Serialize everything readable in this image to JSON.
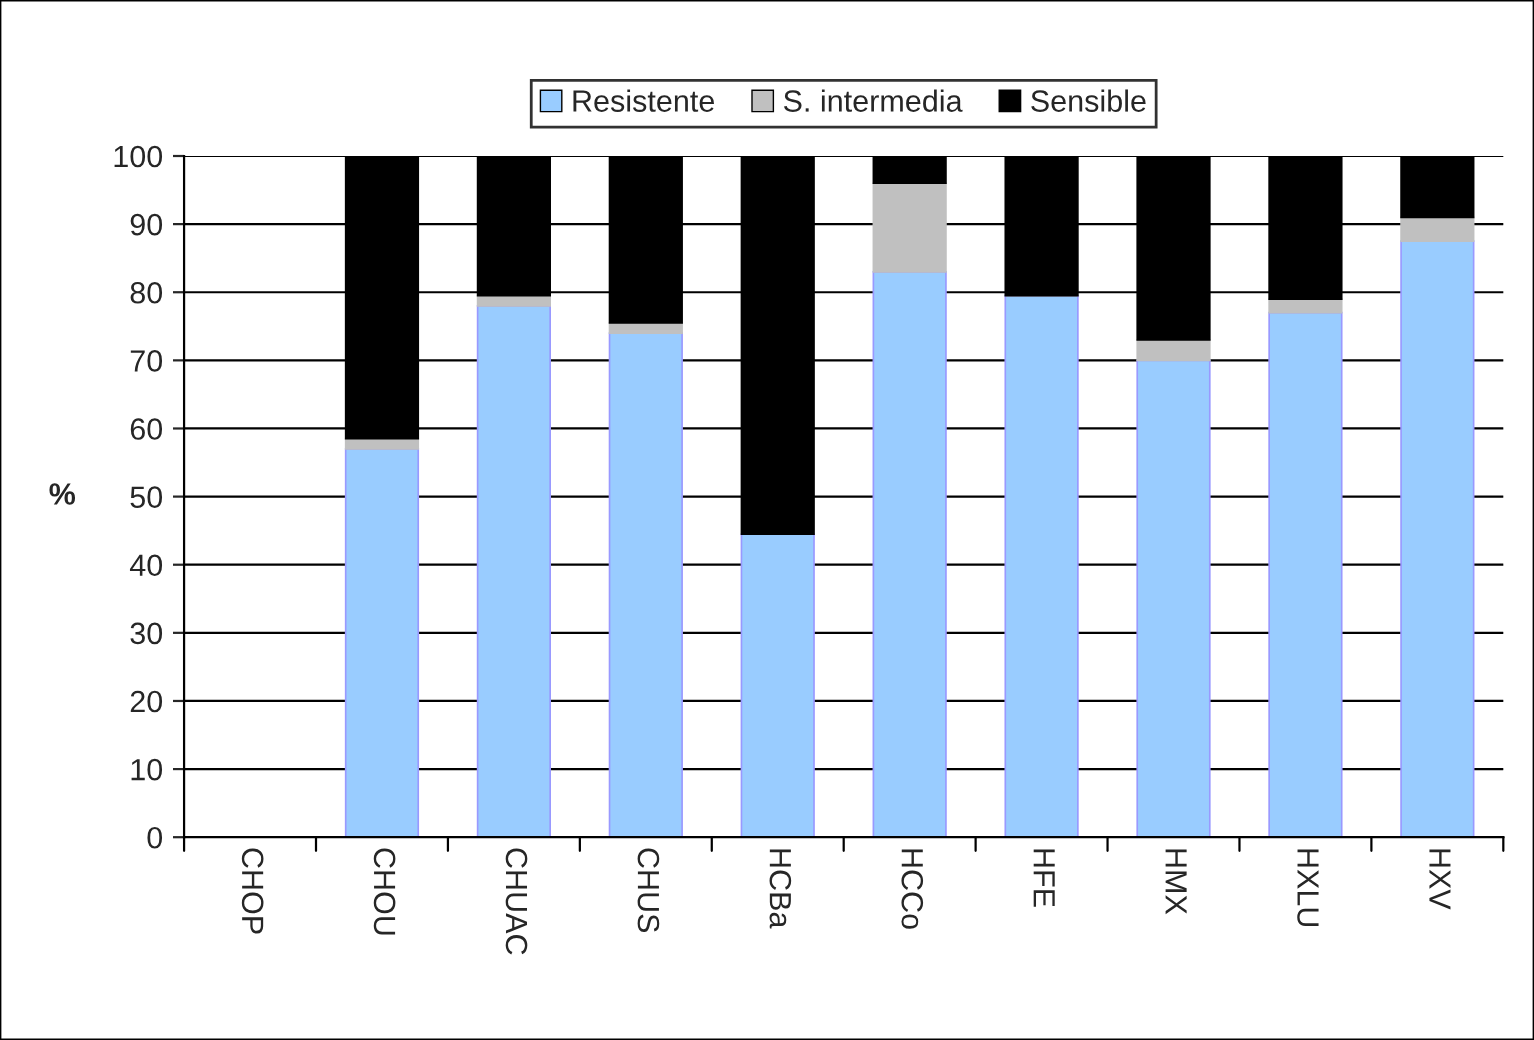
{
  "chart_data": {
    "type": "bar",
    "ylabel": "%",
    "stacked": true,
    "categories": [
      "CHOP",
      "CHOU",
      "CHUAC",
      "CHUS",
      "HCBa",
      "HCCo",
      "HFE",
      "HMX",
      "HXLU",
      "HXV"
    ],
    "series": [
      {
        "name": "Resistente",
        "color": "#99ccff",
        "values": [
          null,
          57,
          78,
          74,
          44.5,
          83,
          79.5,
          70,
          77,
          87.5
        ]
      },
      {
        "name": "S. intermedia",
        "color": "#c0c0c0",
        "values": [
          null,
          1.5,
          1.5,
          1.5,
          0,
          13,
          0,
          3,
          2,
          3.5
        ]
      },
      {
        "name": "Sensible",
        "color": "#000000",
        "values": [
          null,
          41.5,
          20.5,
          24.5,
          55.5,
          4,
          20.5,
          27,
          21,
          9
        ]
      }
    ],
    "ylim": [
      0,
      100
    ],
    "yticks": [
      0,
      10,
      20,
      30,
      40,
      50,
      60,
      70,
      80,
      90,
      100
    ],
    "grid": "y",
    "legend": "top"
  }
}
